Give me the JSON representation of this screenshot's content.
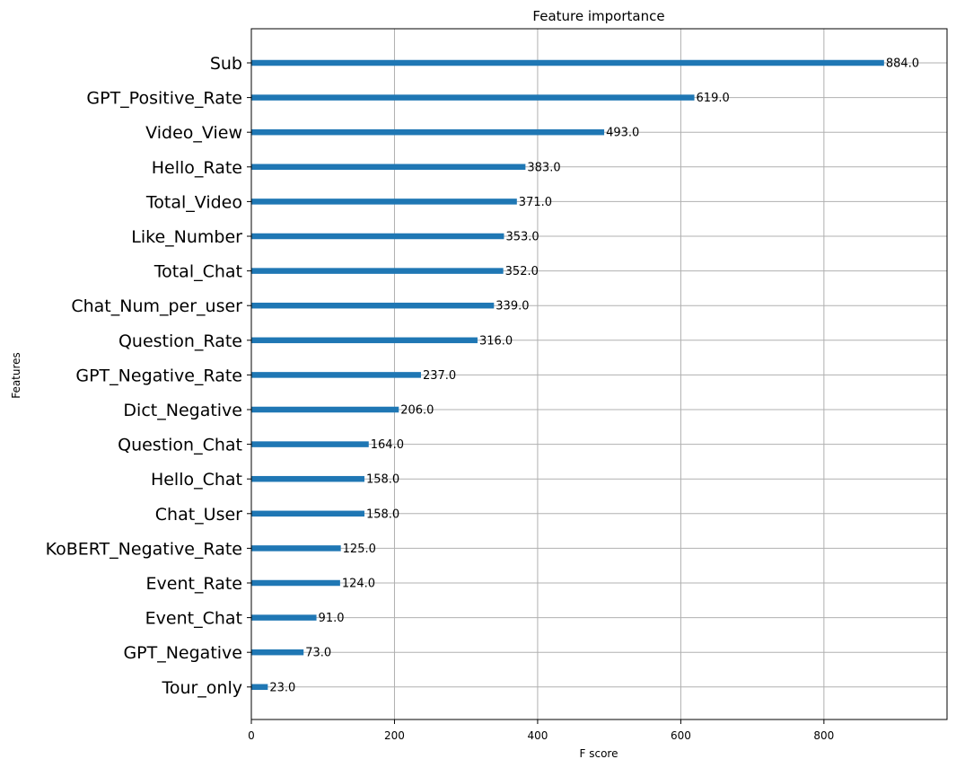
{
  "chart_data": {
    "type": "bar",
    "orientation": "horizontal",
    "title": "Feature importance",
    "xlabel": "F score",
    "ylabel": "Features",
    "xlim": [
      0,
      972
    ],
    "xticks": [
      0,
      200,
      400,
      600,
      800
    ],
    "grid": true,
    "bar_color": "#1f77b4",
    "categories": [
      "Sub",
      "GPT_Positive_Rate",
      "Video_View",
      "Hello_Rate",
      "Total_Video",
      "Like_Number",
      "Total_Chat",
      "Chat_Num_per_user",
      "Question_Rate",
      "GPT_Negative_Rate",
      "Dict_Negative",
      "Question_Chat",
      "Hello_Chat",
      "Chat_User",
      "KoBERT_Negative_Rate",
      "Event_Rate",
      "Event_Chat",
      "GPT_Negative",
      "Tour_only"
    ],
    "values": [
      884,
      619,
      493,
      383,
      371,
      353,
      352,
      339,
      316,
      237,
      206,
      164,
      158,
      158,
      125,
      124,
      91,
      73,
      23
    ],
    "value_labels": [
      "884.0",
      "619.0",
      "493.0",
      "383.0",
      "371.0",
      "353.0",
      "352.0",
      "339.0",
      "316.0",
      "237.0",
      "206.0",
      "164.0",
      "158.0",
      "158.0",
      "125.0",
      "124.0",
      "91.0",
      "73.0",
      "23.0"
    ]
  }
}
